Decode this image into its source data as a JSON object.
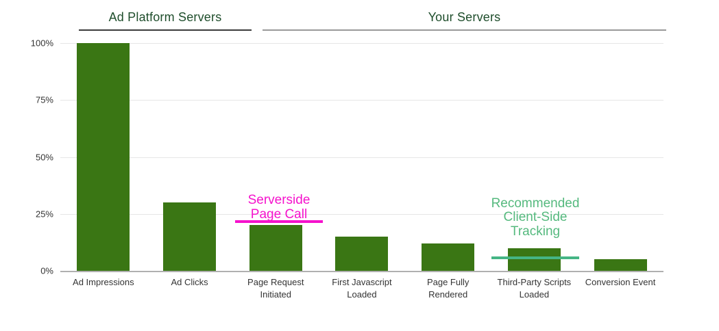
{
  "page": {
    "background": "#ffffff"
  },
  "header": {
    "sections": [
      {
        "label": "Ad Platform Servers"
      },
      {
        "label": "Your Servers"
      }
    ]
  },
  "colors": {
    "bar_green": "#3a7614",
    "title_green": "#1e4d2b",
    "ad_platform_underline": "#3b3b3b",
    "your_servers_underline": "#999999",
    "annotation_magenta": "#f512cc",
    "annotation_green_text": "#55b97e",
    "annotation_green_line": "#45b585",
    "gridline": "#e6e6e6",
    "axis_line": "#b0b0b0",
    "tick_text": "#333333"
  },
  "chart_data": {
    "type": "bar",
    "title": "",
    "xlabel": "",
    "ylabel": "",
    "categories": [
      "Ad Impressions",
      "Ad Clicks",
      "Page Request Initiated",
      "First Javascript Loaded",
      "Page Fully Rendered",
      "Third-Party Scripts Loaded",
      "Conversion Event"
    ],
    "values": [
      100,
      30,
      20,
      15,
      12,
      10,
      5
    ],
    "value_unit": "percent",
    "ylim": [
      0,
      100
    ],
    "yticks": [
      {
        "value": 0,
        "label": "0%"
      },
      {
        "value": 25,
        "label": "25%"
      },
      {
        "value": 50,
        "label": "50%"
      },
      {
        "value": 75,
        "label": "75%"
      },
      {
        "value": 100,
        "label": "100%"
      }
    ],
    "grid": true,
    "legend": "none",
    "group_headers": [
      {
        "label": "Ad Platform Servers",
        "covers": [
          "Ad Impressions",
          "Ad Clicks"
        ]
      },
      {
        "label": "Your Servers",
        "covers": [
          "Page Request Initiated",
          "First Javascript Loaded",
          "Page Fully Rendered",
          "Third-Party Scripts Loaded",
          "Conversion Event"
        ]
      }
    ],
    "annotations": [
      {
        "id": "serverside-page-call",
        "text_lines": [
          "Serverside",
          "Page Call"
        ],
        "target_category": "Page Request Initiated",
        "line_at_value": 21,
        "text_color": "#f512cc",
        "line_color": "#f512cc"
      },
      {
        "id": "recommended-client-side-tracking",
        "text_lines": [
          "Recommended",
          "Client-Side",
          "Tracking"
        ],
        "target_category": "Third-Party Scripts Loaded",
        "line_at_value": 6,
        "text_color": "#55b97e",
        "line_color": "#45b585"
      }
    ]
  }
}
